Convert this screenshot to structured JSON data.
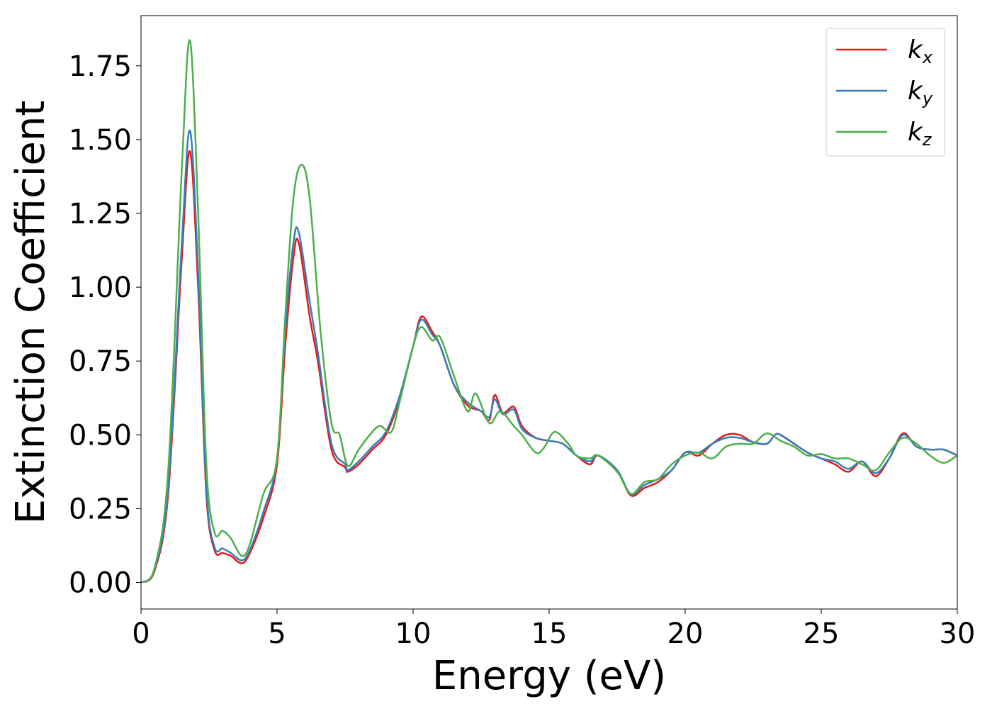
{
  "chart_data": {
    "type": "line",
    "title": "",
    "xlabel": "Energy (eV)",
    "ylabel": "Extinction Coefficient",
    "xlim": [
      0,
      30
    ],
    "ylim": [
      -0.09,
      1.92
    ],
    "xticks": [
      0,
      5,
      10,
      15,
      20,
      25,
      30
    ],
    "xtick_labels": [
      "0",
      "5",
      "10",
      "15",
      "20",
      "25",
      "30"
    ],
    "yticks": [
      0,
      0.25,
      0.5,
      0.75,
      1.0,
      1.25,
      1.5,
      1.75
    ],
    "ytick_labels": [
      "0.00",
      "0.25",
      "0.50",
      "0.75",
      "1.00",
      "1.25",
      "1.50",
      "1.75"
    ],
    "grid": false,
    "legend_position": "top-right",
    "series": [
      {
        "name": "k",
        "subscript": "x",
        "color": "#e41a1c",
        "points": [
          [
            0,
            0
          ],
          [
            0.5,
            0.04
          ],
          [
            1,
            0.3
          ],
          [
            1.5,
            1.1
          ],
          [
            1.8,
            1.46
          ],
          [
            2.1,
            1.0
          ],
          [
            2.4,
            0.3
          ],
          [
            2.7,
            0.11
          ],
          [
            3.0,
            0.1
          ],
          [
            3.3,
            0.09
          ],
          [
            3.7,
            0.065
          ],
          [
            4.0,
            0.1
          ],
          [
            4.5,
            0.22
          ],
          [
            5.0,
            0.4
          ],
          [
            5.3,
            0.8
          ],
          [
            5.6,
            1.1
          ],
          [
            5.8,
            1.15
          ],
          [
            6.2,
            0.9
          ],
          [
            6.5,
            0.75
          ],
          [
            7.0,
            0.45
          ],
          [
            7.5,
            0.39
          ],
          [
            7.6,
            0.375
          ],
          [
            8.0,
            0.4
          ],
          [
            8.5,
            0.45
          ],
          [
            9.0,
            0.5
          ],
          [
            9.5,
            0.62
          ],
          [
            10.0,
            0.8
          ],
          [
            10.3,
            0.9
          ],
          [
            10.7,
            0.85
          ],
          [
            11.0,
            0.8
          ],
          [
            11.5,
            0.67
          ],
          [
            12.0,
            0.6
          ],
          [
            12.5,
            0.58
          ],
          [
            12.8,
            0.55
          ],
          [
            13.0,
            0.635
          ],
          [
            13.3,
            0.575
          ],
          [
            13.7,
            0.595
          ],
          [
            14.0,
            0.53
          ],
          [
            14.5,
            0.49
          ],
          [
            15.0,
            0.48
          ],
          [
            15.5,
            0.47
          ],
          [
            16.0,
            0.43
          ],
          [
            16.5,
            0.4
          ],
          [
            16.8,
            0.43
          ],
          [
            17.5,
            0.38
          ],
          [
            18.0,
            0.295
          ],
          [
            18.5,
            0.32
          ],
          [
            19.0,
            0.34
          ],
          [
            19.5,
            0.38
          ],
          [
            20.0,
            0.44
          ],
          [
            20.5,
            0.43
          ],
          [
            21.0,
            0.47
          ],
          [
            21.5,
            0.5
          ],
          [
            22.0,
            0.5
          ],
          [
            22.5,
            0.475
          ],
          [
            23.0,
            0.47
          ],
          [
            23.3,
            0.5
          ],
          [
            23.5,
            0.5
          ],
          [
            24.0,
            0.47
          ],
          [
            24.5,
            0.44
          ],
          [
            25.0,
            0.42
          ],
          [
            25.5,
            0.4
          ],
          [
            26.0,
            0.375
          ],
          [
            26.5,
            0.41
          ],
          [
            27.0,
            0.36
          ],
          [
            27.5,
            0.42
          ],
          [
            28.0,
            0.505
          ],
          [
            28.5,
            0.46
          ],
          [
            29.0,
            0.45
          ],
          [
            29.5,
            0.45
          ],
          [
            30.0,
            0.43
          ]
        ]
      },
      {
        "name": "k",
        "subscript": "y",
        "color": "#377eb8",
        "points": [
          [
            0,
            0
          ],
          [
            0.5,
            0.045
          ],
          [
            1,
            0.32
          ],
          [
            1.5,
            1.15
          ],
          [
            1.8,
            1.53
          ],
          [
            2.1,
            1.05
          ],
          [
            2.4,
            0.32
          ],
          [
            2.7,
            0.12
          ],
          [
            3.0,
            0.115
          ],
          [
            3.3,
            0.1
          ],
          [
            3.7,
            0.075
          ],
          [
            4.0,
            0.11
          ],
          [
            4.5,
            0.24
          ],
          [
            5.0,
            0.42
          ],
          [
            5.3,
            0.85
          ],
          [
            5.6,
            1.15
          ],
          [
            5.8,
            1.185
          ],
          [
            6.2,
            0.95
          ],
          [
            6.5,
            0.78
          ],
          [
            7.0,
            0.47
          ],
          [
            7.5,
            0.4
          ],
          [
            7.6,
            0.38
          ],
          [
            8.0,
            0.41
          ],
          [
            8.5,
            0.46
          ],
          [
            9.0,
            0.51
          ],
          [
            9.5,
            0.63
          ],
          [
            10.0,
            0.8
          ],
          [
            10.3,
            0.89
          ],
          [
            10.7,
            0.84
          ],
          [
            11.0,
            0.8
          ],
          [
            11.5,
            0.67
          ],
          [
            12.0,
            0.61
          ],
          [
            12.5,
            0.58
          ],
          [
            12.8,
            0.56
          ],
          [
            13.0,
            0.62
          ],
          [
            13.3,
            0.57
          ],
          [
            13.7,
            0.585
          ],
          [
            14.0,
            0.52
          ],
          [
            14.5,
            0.49
          ],
          [
            15.0,
            0.48
          ],
          [
            15.5,
            0.47
          ],
          [
            16.0,
            0.43
          ],
          [
            16.5,
            0.41
          ],
          [
            16.8,
            0.43
          ],
          [
            17.5,
            0.38
          ],
          [
            18.0,
            0.3
          ],
          [
            18.5,
            0.33
          ],
          [
            19.0,
            0.35
          ],
          [
            19.5,
            0.38
          ],
          [
            20.0,
            0.44
          ],
          [
            20.5,
            0.44
          ],
          [
            21.0,
            0.47
          ],
          [
            21.5,
            0.49
          ],
          [
            22.0,
            0.49
          ],
          [
            22.5,
            0.475
          ],
          [
            23.0,
            0.47
          ],
          [
            23.3,
            0.5
          ],
          [
            23.5,
            0.5
          ],
          [
            24.0,
            0.47
          ],
          [
            24.5,
            0.44
          ],
          [
            25.0,
            0.42
          ],
          [
            25.5,
            0.41
          ],
          [
            26.0,
            0.385
          ],
          [
            26.5,
            0.41
          ],
          [
            27.0,
            0.37
          ],
          [
            27.5,
            0.42
          ],
          [
            28.0,
            0.5
          ],
          [
            28.5,
            0.46
          ],
          [
            29.0,
            0.45
          ],
          [
            29.5,
            0.45
          ],
          [
            30.0,
            0.43
          ]
        ]
      },
      {
        "name": "k",
        "subscript": "z",
        "color": "#4daf4a",
        "points": [
          [
            0,
            0
          ],
          [
            0.5,
            0.05
          ],
          [
            1,
            0.38
          ],
          [
            1.5,
            1.4
          ],
          [
            1.8,
            1.835
          ],
          [
            2.1,
            1.25
          ],
          [
            2.4,
            0.4
          ],
          [
            2.7,
            0.17
          ],
          [
            3.0,
            0.175
          ],
          [
            3.3,
            0.15
          ],
          [
            3.7,
            0.09
          ],
          [
            4.0,
            0.13
          ],
          [
            4.5,
            0.3
          ],
          [
            5.0,
            0.42
          ],
          [
            5.3,
            0.9
          ],
          [
            5.6,
            1.3
          ],
          [
            5.9,
            1.415
          ],
          [
            6.2,
            1.3
          ],
          [
            6.6,
            0.85
          ],
          [
            7.0,
            0.54
          ],
          [
            7.3,
            0.5
          ],
          [
            7.6,
            0.395
          ],
          [
            8.0,
            0.45
          ],
          [
            8.5,
            0.51
          ],
          [
            8.8,
            0.53
          ],
          [
            9.2,
            0.51
          ],
          [
            9.5,
            0.61
          ],
          [
            10.0,
            0.8
          ],
          [
            10.3,
            0.865
          ],
          [
            10.7,
            0.82
          ],
          [
            11.0,
            0.83
          ],
          [
            11.5,
            0.7
          ],
          [
            12.0,
            0.58
          ],
          [
            12.3,
            0.64
          ],
          [
            12.8,
            0.54
          ],
          [
            13.2,
            0.58
          ],
          [
            13.7,
            0.53
          ],
          [
            14.0,
            0.5
          ],
          [
            14.5,
            0.44
          ],
          [
            14.8,
            0.455
          ],
          [
            15.2,
            0.51
          ],
          [
            15.7,
            0.47
          ],
          [
            16.0,
            0.43
          ],
          [
            16.5,
            0.42
          ],
          [
            16.8,
            0.43
          ],
          [
            17.5,
            0.375
          ],
          [
            18.0,
            0.3
          ],
          [
            18.5,
            0.34
          ],
          [
            19.0,
            0.35
          ],
          [
            19.5,
            0.4
          ],
          [
            20.0,
            0.43
          ],
          [
            20.5,
            0.44
          ],
          [
            21.0,
            0.42
          ],
          [
            21.5,
            0.46
          ],
          [
            22.0,
            0.47
          ],
          [
            22.5,
            0.47
          ],
          [
            23.0,
            0.505
          ],
          [
            23.5,
            0.48
          ],
          [
            24.0,
            0.46
          ],
          [
            24.5,
            0.43
          ],
          [
            25.0,
            0.435
          ],
          [
            25.5,
            0.42
          ],
          [
            26.0,
            0.42
          ],
          [
            26.5,
            0.4
          ],
          [
            27.0,
            0.38
          ],
          [
            27.5,
            0.44
          ],
          [
            28.0,
            0.49
          ],
          [
            28.5,
            0.47
          ],
          [
            29.0,
            0.43
          ],
          [
            29.5,
            0.405
          ],
          [
            30.0,
            0.43
          ]
        ]
      }
    ]
  }
}
